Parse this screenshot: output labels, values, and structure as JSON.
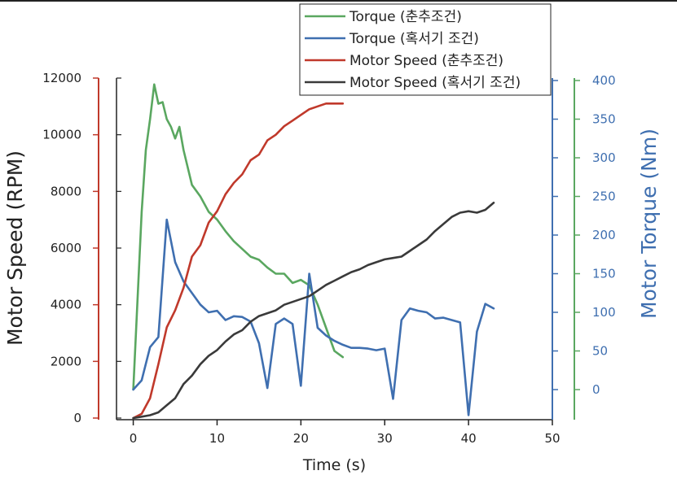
{
  "chart_data": {
    "type": "line",
    "xlabel": "Time (s)",
    "x_ticks": [
      0,
      10,
      20,
      30,
      40,
      50
    ],
    "xlim": [
      -2,
      50
    ],
    "grid": false,
    "legend_position": "top-center",
    "axes": {
      "left": {
        "label": "Motor Speed (RPM)",
        "ylim": [
          0,
          12000
        ],
        "ticks": [
          0,
          2000,
          4000,
          6000,
          8000,
          10000,
          12000
        ],
        "color": "#c0392b"
      },
      "right_inner": {
        "label": "",
        "ylim": [
          -40,
          400
        ],
        "ticks": [
          0,
          50,
          100,
          150,
          200,
          250,
          300,
          350,
          400
        ],
        "color": "#3f6fb0"
      },
      "right_outer": {
        "label": "Motor Torque (Nm)",
        "ylim": [
          -40,
          400
        ],
        "ticks": [
          0,
          50,
          100,
          150,
          200,
          250,
          300,
          350,
          400
        ],
        "color": "#5aa760"
      }
    },
    "series": [
      {
        "name": "Torque (춘추조건)",
        "axis": "torque",
        "color": "#5aa760",
        "x": [
          0,
          1,
          1.5,
          2,
          2.5,
          3,
          3.5,
          4,
          4.5,
          5,
          5.5,
          6,
          7,
          8,
          9,
          10,
          11,
          12,
          13,
          14,
          15,
          16,
          17,
          18,
          19,
          20,
          21,
          22,
          23,
          24,
          25
        ],
        "y": [
          0,
          230,
          310,
          350,
          395,
          370,
          372,
          350,
          340,
          325,
          340,
          310,
          265,
          250,
          230,
          220,
          205,
          192,
          182,
          172,
          168,
          158,
          150,
          150,
          138,
          142,
          135,
          110,
          80,
          50,
          42
        ]
      },
      {
        "name": "Torque (혹서기 조건)",
        "axis": "torque",
        "color": "#3f6fb0",
        "x": [
          0,
          1,
          2,
          3,
          4,
          5,
          6,
          7,
          8,
          9,
          10,
          11,
          12,
          13,
          14,
          15,
          16,
          17,
          18,
          19,
          20,
          21,
          22,
          23,
          24,
          25,
          26,
          27,
          28,
          29,
          30,
          31,
          32,
          33,
          34,
          35,
          36,
          37,
          38,
          39,
          40,
          41,
          42,
          43
        ],
        "y": [
          0,
          12,
          55,
          68,
          220,
          165,
          140,
          125,
          110,
          100,
          102,
          90,
          95,
          94,
          88,
          60,
          2,
          85,
          92,
          85,
          5,
          150,
          80,
          70,
          63,
          58,
          54,
          54,
          53,
          51,
          53,
          -12,
          90,
          105,
          102,
          100,
          92,
          93,
          90,
          87,
          -33,
          75,
          111,
          105
        ]
      },
      {
        "name": "Motor Speed (춘추조건)",
        "axis": "speed",
        "color": "#c0392b",
        "x": [
          0,
          1,
          2,
          3,
          4,
          5,
          6,
          7,
          8,
          9,
          10,
          11,
          12,
          13,
          14,
          15,
          16,
          17,
          18,
          19,
          20,
          21,
          22,
          23,
          24,
          25
        ],
        "y": [
          0,
          150,
          700,
          1900,
          3200,
          3800,
          4600,
          5700,
          6100,
          6900,
          7300,
          7900,
          8300,
          8600,
          9100,
          9300,
          9800,
          10000,
          10300,
          10500,
          10700,
          10900,
          11000,
          11100,
          11100,
          11100
        ]
      },
      {
        "name": "Motor Speed (혹서기 조건)",
        "axis": "speed",
        "color": "#3a3a3a",
        "x": [
          0,
          1,
          2,
          3,
          4,
          5,
          6,
          7,
          8,
          9,
          10,
          11,
          12,
          13,
          14,
          15,
          16,
          17,
          18,
          19,
          20,
          21,
          22,
          23,
          24,
          25,
          26,
          27,
          28,
          29,
          30,
          31,
          32,
          33,
          34,
          35,
          36,
          37,
          38,
          39,
          40,
          41,
          42,
          43
        ],
        "y": [
          0,
          50,
          100,
          200,
          450,
          700,
          1200,
          1500,
          1900,
          2200,
          2400,
          2700,
          2950,
          3100,
          3400,
          3600,
          3700,
          3800,
          4000,
          4100,
          4200,
          4300,
          4500,
          4700,
          4850,
          5000,
          5150,
          5250,
          5400,
          5500,
          5600,
          5650,
          5700,
          5900,
          6100,
          6300,
          6600,
          6850,
          7100,
          7250,
          7300,
          7250,
          7350,
          7600
        ]
      }
    ]
  }
}
